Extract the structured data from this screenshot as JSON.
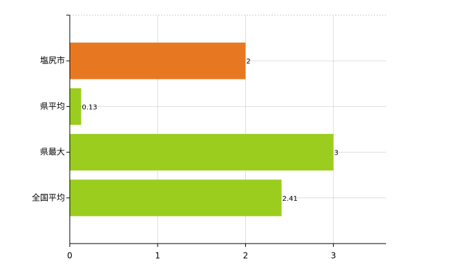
{
  "chart_data": {
    "type": "bar",
    "orientation": "horizontal",
    "categories": [
      "塩尻市",
      "県平均",
      "県最大",
      "全国平均"
    ],
    "values": [
      2,
      0.13,
      3,
      2.41
    ],
    "colors": [
      "#e87722",
      "#9acd1e",
      "#9acd1e",
      "#9acd1e"
    ],
    "xlim": [
      0,
      3.6
    ],
    "xticks": [
      0,
      1,
      2,
      3
    ],
    "grid": true
  }
}
